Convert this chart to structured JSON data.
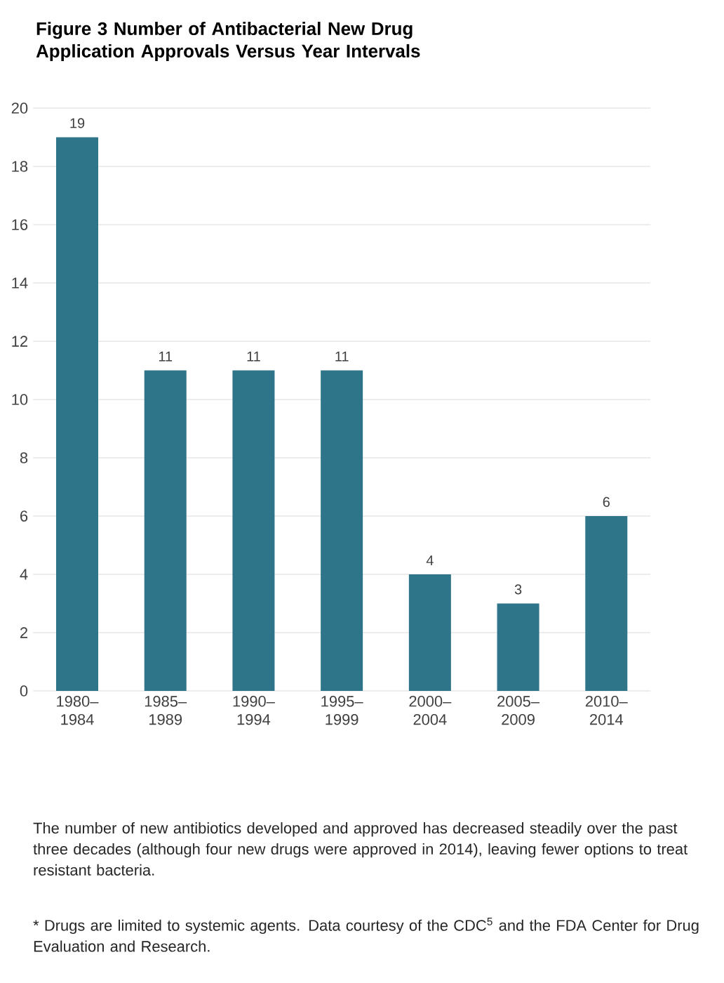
{
  "chart_data": {
    "type": "bar",
    "title": "Figure 3  Number of Antibacterial New Drug Application Approvals Versus Year Intervals",
    "categories": [
      "1980–1984",
      "1985–1989",
      "1990–1994",
      "1995–1999",
      "2000–2004",
      "2005–2009",
      "2010–2014"
    ],
    "values": [
      19,
      11,
      11,
      11,
      4,
      3,
      6
    ],
    "color": "#2e7589",
    "ylim": [
      0,
      20
    ],
    "yticks": [
      0,
      2,
      4,
      6,
      8,
      10,
      12,
      14,
      16,
      18,
      20
    ],
    "grid": "y",
    "data_labels": true,
    "annotations": [
      "The number of new antibiotics developed and approved has decreased steadily over the past three decades (although four new drugs were approved in 2014), leaving fewer options to treat resistant bacteria.",
      "* Drugs are limited to systemic agents. Data courtesy of the CDC$^{5}$ and the FDA Center for Drug Evaluation and Research."
    ]
  }
}
